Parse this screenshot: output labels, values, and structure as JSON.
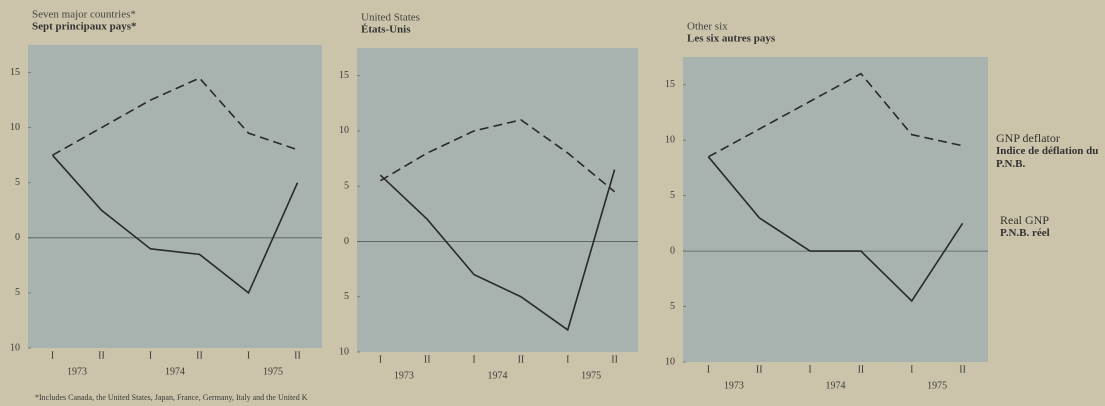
{
  "chart_data": [
    {
      "type": "line",
      "title": "Seven major countries*",
      "subtitle": "Sept principaux pays*",
      "categories": [
        "I",
        "II",
        "I",
        "II",
        "I",
        "II"
      ],
      "years": [
        "1973",
        "1974",
        "1975"
      ],
      "ylim": [
        -10,
        17.5
      ],
      "yticks": [
        {
          "value": -10,
          "label": "10"
        },
        {
          "value": -5,
          "label": "5"
        },
        0,
        5,
        10,
        15
      ],
      "series": [
        {
          "name": "GNP deflator",
          "name_fr": "Indice de déflation du P.N.B.",
          "color": "#2a2a2a",
          "dashed": true,
          "values": [
            7.5,
            10,
            12.5,
            14.5,
            9.5,
            8
          ]
        },
        {
          "name": "Real GNP",
          "name_fr": "P.N.B. réel",
          "color": "#2a2a2a",
          "dashed": false,
          "values": [
            7.5,
            2.5,
            -1,
            -1.5,
            -5,
            5
          ]
        }
      ]
    },
    {
      "type": "line",
      "title": "United States",
      "subtitle": "États-Unis",
      "categories": [
        "I",
        "II",
        "I",
        "II",
        "I",
        "II"
      ],
      "years": [
        "1973",
        "1974",
        "1975"
      ],
      "ylim": [
        -10,
        17.5
      ],
      "yticks": [
        {
          "value": -10,
          "label": "10"
        },
        {
          "value": -5,
          "label": "5"
        },
        0,
        5,
        10,
        15
      ],
      "series": [
        {
          "name": "GNP deflator",
          "name_fr": "Indice de déflation du P.N.B.",
          "color": "#2a2a2a",
          "dashed": true,
          "values": [
            5.5,
            8,
            10,
            11,
            8,
            4.5
          ]
        },
        {
          "name": "Real GNP",
          "name_fr": "P.N.B. réel",
          "color": "#2a2a2a",
          "dashed": false,
          "values": [
            6,
            2,
            -3,
            -5,
            -8,
            6.5
          ]
        }
      ]
    },
    {
      "type": "line",
      "title": "Other six",
      "subtitle": "Les six autres pays",
      "categories": [
        "I",
        "II",
        "I",
        "II",
        "I",
        "II"
      ],
      "years": [
        "1973",
        "1974",
        "1975"
      ],
      "ylim": [
        -10,
        17.5
      ],
      "yticks": [
        {
          "value": -10,
          "label": "10"
        },
        {
          "value": -5,
          "label": "5"
        },
        0,
        5,
        10,
        15
      ],
      "series": [
        {
          "name": "GNP deflator",
          "name_fr": "Indice de déflation du P.N.B.",
          "color": "#2a2a2a",
          "dashed": true,
          "values": [
            8.5,
            11,
            13.5,
            16,
            10.5,
            9.5
          ]
        },
        {
          "name": "Real GNP",
          "name_fr": "P.N.B. réel",
          "color": "#2a2a2a",
          "dashed": false,
          "values": [
            8.5,
            3,
            0,
            0,
            -4.5,
            2.5
          ]
        }
      ]
    }
  ],
  "footnote": "*Includes Canada, the United States, Japan, France, Germany, Italy and the United K"
}
